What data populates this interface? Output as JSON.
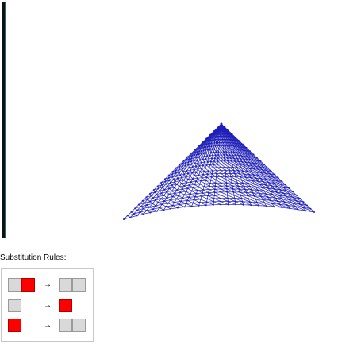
{
  "rules": {
    "title": "Substitution Rules:",
    "items": [
      {
        "lhs": [
          "gray",
          "red"
        ],
        "arrow": "→",
        "rhs": [
          "gray",
          "gray"
        ]
      },
      {
        "lhs": [
          "gray"
        ],
        "arrow": "→",
        "rhs": [
          "red"
        ]
      },
      {
        "lhs": [
          "red"
        ],
        "arrow": "→",
        "rhs": [
          "gray",
          "gray"
        ]
      }
    ]
  },
  "colors": {
    "mesh": "#1f1fb8",
    "red": "#ff0000",
    "gray": "#d9d9d9"
  }
}
